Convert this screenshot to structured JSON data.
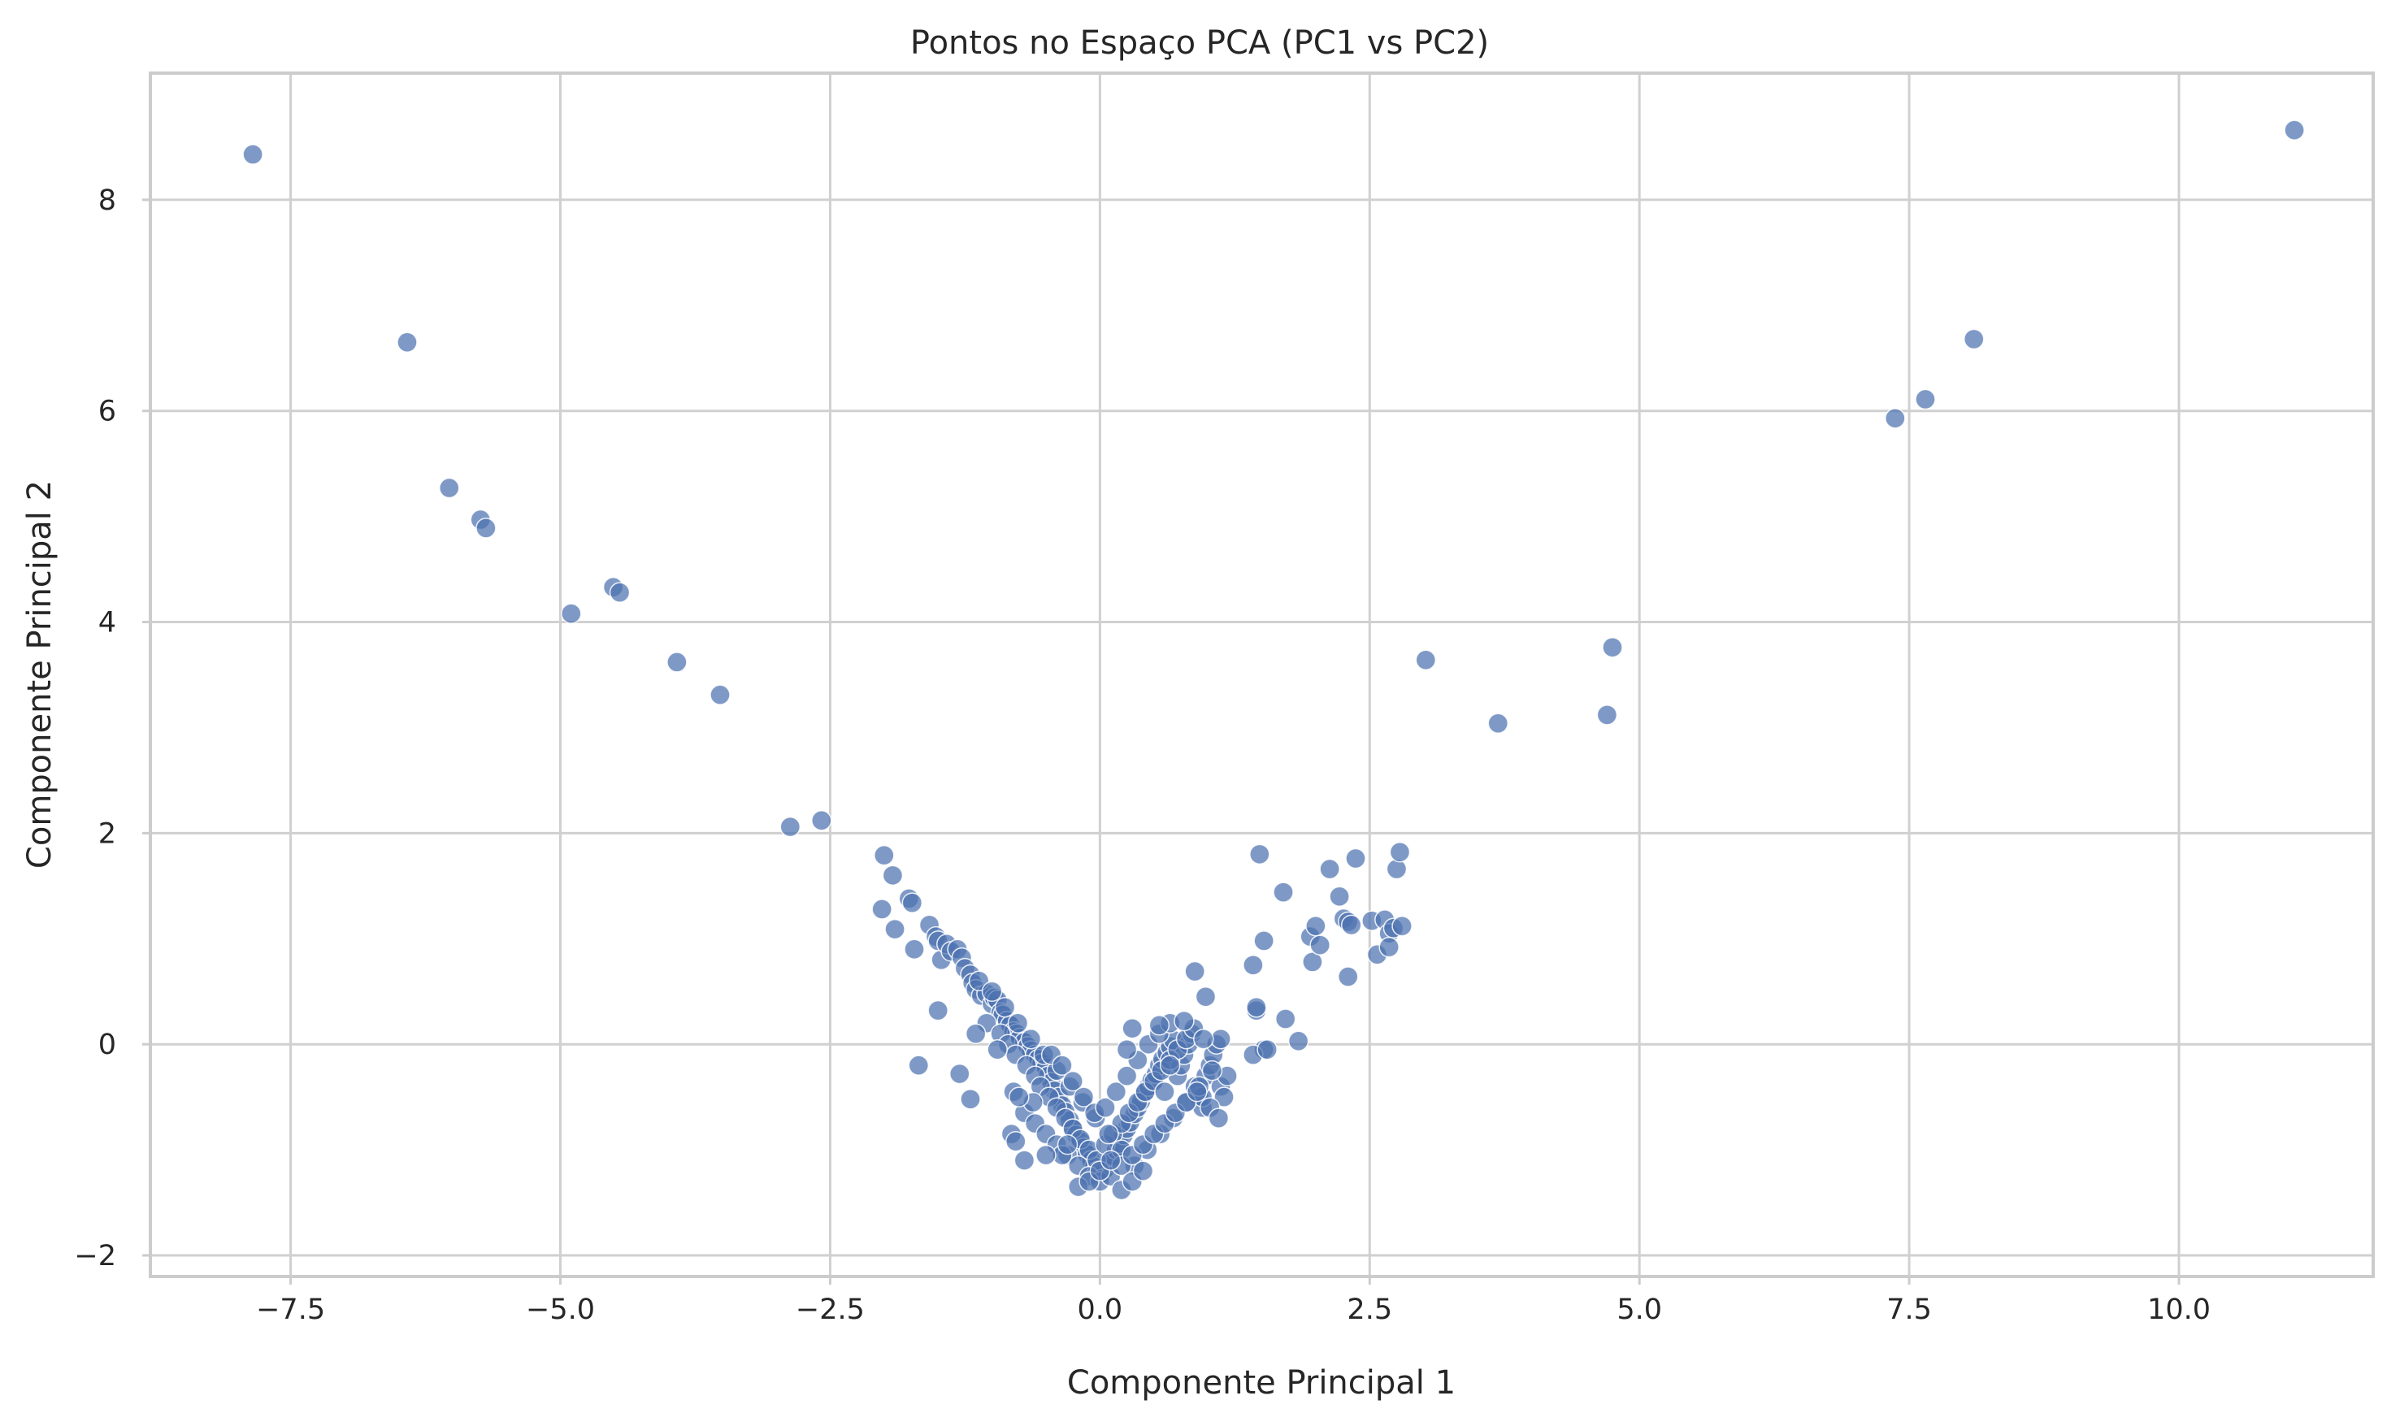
{
  "chart_data": {
    "type": "scatter",
    "title": "Pontos no Espaço PCA (PC1 vs PC2)",
    "xlabel": "Componente Principal 1",
    "ylabel": "Componente Principal 2",
    "xlim": [
      -8.8,
      11.8
    ],
    "ylim": [
      -2.2,
      9.2
    ],
    "xticks": [
      -7.5,
      -5.0,
      -2.5,
      0.0,
      2.5,
      5.0,
      7.5,
      10.0
    ],
    "xtick_labels": [
      "−7.5",
      "−5.0",
      "−2.5",
      "0.0",
      "2.5",
      "5.0",
      "7.5",
      "10.0"
    ],
    "yticks": [
      -2,
      0,
      2,
      4,
      6,
      8
    ],
    "ytick_labels": [
      "−2",
      "0",
      "2",
      "4",
      "6",
      "8"
    ],
    "grid": true,
    "legend": "none",
    "point_color": "#4c72b0",
    "series": [
      {
        "x": [
          -7.85,
          -6.42,
          -6.03,
          -5.74,
          -5.69,
          -4.9,
          -4.51,
          -4.45,
          -3.92,
          -3.52,
          -2.87,
          -2.58,
          3.02,
          3.69,
          4.7,
          4.75,
          7.37,
          7.65,
          8.1,
          11.07,
          -2.0,
          -1.92,
          -2.02,
          -1.9,
          -1.77,
          -1.74,
          -1.72,
          -1.58,
          -1.52,
          -1.47,
          -1.5,
          -1.42,
          -1.38,
          -1.32,
          -1.28,
          -1.25,
          -1.2,
          -1.18,
          -1.15,
          -1.1,
          -1.05,
          -1.0,
          -0.98,
          -0.95,
          -0.92,
          -0.9,
          -0.86,
          -0.83,
          -0.8,
          -0.77,
          -0.74,
          -0.7,
          -0.67,
          -0.64,
          -0.6,
          -0.57,
          -0.54,
          -0.5,
          -0.48,
          -0.45,
          -0.42,
          -0.38,
          -0.35,
          -0.32,
          -0.28,
          -0.25,
          -0.22,
          -0.18,
          -0.15,
          -0.12,
          -0.08,
          -0.05,
          -0.02,
          0.02,
          0.05,
          0.08,
          0.12,
          0.15,
          0.18,
          0.22,
          0.25,
          0.28,
          0.32,
          0.35,
          0.38,
          0.42,
          0.45,
          0.48,
          0.52,
          0.55,
          0.58,
          0.62,
          0.65,
          0.68,
          0.72,
          0.75,
          0.78,
          0.82,
          0.85,
          0.88,
          0.92,
          0.95,
          0.98,
          1.02,
          1.05,
          1.08,
          1.12,
          1.15,
          1.18,
          -1.05,
          -0.92,
          -0.85,
          -0.78,
          -0.68,
          -0.6,
          -0.55,
          -0.47,
          -0.4,
          -0.32,
          -0.25,
          -0.18,
          -0.1,
          -0.03,
          0.05,
          0.12,
          0.2,
          0.27,
          0.35,
          0.42,
          0.5,
          0.57,
          0.65,
          0.72,
          0.8,
          0.87,
          0.95,
          1.02,
          1.1,
          -1.12,
          -1.0,
          -0.88,
          -0.76,
          -0.64,
          -0.52,
          -0.4,
          -0.28,
          -0.16,
          -0.04,
          0.08,
          0.2,
          0.32,
          0.44,
          0.56,
          0.68,
          0.8,
          0.92,
          1.04,
          -0.7,
          -0.6,
          -0.5,
          -0.4,
          -0.3,
          -0.2,
          -0.1,
          0.0,
          0.1,
          0.2,
          0.3,
          0.4,
          0.5,
          0.6,
          0.7,
          0.8,
          0.9,
          -0.45,
          -0.35,
          -0.25,
          -0.15,
          -0.05,
          0.05,
          0.15,
          0.25,
          0.35,
          0.45,
          0.55,
          0.65,
          -0.2,
          -0.1,
          0.0,
          0.1,
          0.2,
          0.3,
          0.4,
          -0.95,
          -0.8,
          -0.62,
          -0.35,
          0.3,
          0.55,
          0.78,
          0.98,
          1.12,
          -1.68,
          -1.5,
          -1.3,
          -1.15,
          -1.2,
          -0.82,
          -0.78,
          -0.75,
          1.42,
          1.45,
          1.52,
          1.48,
          1.7,
          1.72,
          1.84,
          1.95,
          1.97,
          2.0,
          2.04,
          2.13,
          2.22,
          2.26,
          2.3,
          2.33,
          2.37,
          2.52,
          2.57,
          2.64,
          2.68,
          2.72,
          2.75,
          2.78,
          2.8,
          2.68,
          1.52,
          2.3,
          1.42,
          1.45,
          1.55,
          0.88,
          0.96,
          0.25,
          0.65,
          0.6,
          -0.3,
          -0.5,
          -0.7
        ],
        "y": [
          8.43,
          6.65,
          5.27,
          4.97,
          4.89,
          4.08,
          4.33,
          4.28,
          3.62,
          3.31,
          2.06,
          2.12,
          3.64,
          3.04,
          3.12,
          3.76,
          5.93,
          6.11,
          6.68,
          8.66,
          1.79,
          1.6,
          1.28,
          1.09,
          1.38,
          1.34,
          0.9,
          1.13,
          1.02,
          0.8,
          0.98,
          0.95,
          0.88,
          0.9,
          0.82,
          0.72,
          0.66,
          0.58,
          0.52,
          0.46,
          0.48,
          0.38,
          0.44,
          0.42,
          0.3,
          0.28,
          0.22,
          0.18,
          0.12,
          0.1,
          0.06,
          0.02,
          -0.02,
          -0.06,
          -0.1,
          -0.14,
          -0.18,
          -0.22,
          -0.3,
          -0.36,
          -0.44,
          -0.5,
          -0.58,
          -0.64,
          -0.72,
          -0.8,
          -0.86,
          -0.92,
          -0.98,
          -1.04,
          -1.1,
          -1.16,
          -1.2,
          -1.22,
          -1.18,
          -1.12,
          -1.06,
          -1.0,
          -0.94,
          -0.86,
          -0.8,
          -0.74,
          -0.66,
          -0.6,
          -0.54,
          -0.46,
          -0.4,
          -0.34,
          -0.28,
          -0.2,
          -0.14,
          -0.08,
          -0.02,
          0.04,
          -0.3,
          -0.2,
          -0.1,
          0.0,
          0.1,
          -0.4,
          -0.5,
          -0.6,
          -0.3,
          -0.2,
          -0.1,
          0.0,
          -0.4,
          -0.5,
          -0.3,
          0.2,
          0.1,
          0.0,
          -0.1,
          -0.2,
          -0.3,
          -0.4,
          -0.5,
          -0.6,
          -0.7,
          -0.8,
          -0.9,
          -1.0,
          -1.1,
          -0.95,
          -0.85,
          -0.75,
          -0.65,
          -0.55,
          -0.45,
          -0.35,
          -0.25,
          -0.15,
          -0.05,
          0.05,
          0.15,
          -0.5,
          -0.6,
          -0.7,
          0.6,
          0.5,
          0.35,
          0.2,
          0.05,
          -0.1,
          -0.25,
          -0.4,
          -0.55,
          -0.7,
          -0.85,
          -1.0,
          -1.15,
          -1.0,
          -0.85,
          -0.7,
          -0.55,
          -0.4,
          -0.25,
          -0.65,
          -0.75,
          -0.85,
          -0.95,
          -1.05,
          -1.15,
          -1.25,
          -1.3,
          -1.25,
          -1.15,
          -1.05,
          -0.95,
          -0.85,
          -0.75,
          -0.65,
          -0.55,
          -0.45,
          -0.1,
          -0.2,
          -0.35,
          -0.5,
          -0.65,
          -0.6,
          -0.45,
          -0.3,
          -0.15,
          0.0,
          0.1,
          0.2,
          -1.35,
          -1.3,
          -1.2,
          -1.1,
          -1.38,
          -1.3,
          -1.2,
          -0.05,
          -0.45,
          -0.55,
          -1.05,
          0.15,
          0.18,
          0.22,
          0.45,
          0.05,
          -0.2,
          0.32,
          -0.28,
          0.1,
          -0.52,
          -0.85,
          -0.92,
          -0.5,
          0.75,
          0.32,
          0.98,
          1.8,
          1.44,
          0.24,
          0.03,
          1.02,
          0.78,
          1.12,
          0.94,
          1.66,
          1.4,
          1.19,
          1.16,
          1.13,
          1.76,
          1.17,
          0.85,
          1.18,
          1.05,
          1.1,
          1.66,
          1.82,
          1.12,
          0.92,
          -0.05,
          0.64,
          -0.1,
          0.35,
          -0.05,
          0.69,
          0.05,
          -0.05,
          -0.2,
          -0.45,
          -0.95,
          -1.05,
          -1.1
        ]
      }
    ]
  }
}
